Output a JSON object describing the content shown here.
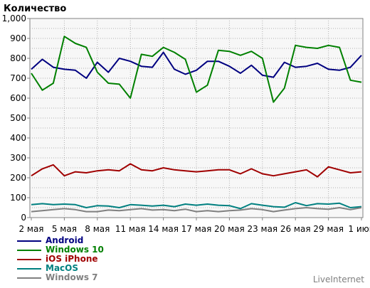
{
  "chart_data": {
    "type": "line",
    "title": "Количество",
    "xlabel": "",
    "ylabel": "",
    "ylim": [
      0,
      1000
    ],
    "yticks": [
      0,
      50,
      100,
      150,
      200,
      250,
      300,
      350,
      400,
      450,
      500,
      550,
      600,
      650,
      700,
      750,
      800,
      850,
      900,
      950,
      1000
    ],
    "ytick_labels": [
      "0",
      "",
      "100",
      "",
      "200",
      "",
      "300",
      "",
      "400",
      "",
      "500",
      "",
      "600",
      "",
      "700",
      "",
      "800",
      "",
      "900",
      "",
      "1,000"
    ],
    "grid": true,
    "legend_position": "bottom-left",
    "x": [
      "2 мая",
      "3 мая",
      "4 мая",
      "5 мая",
      "6 мая",
      "7 мая",
      "8 мая",
      "9 мая",
      "10 мая",
      "11 мая",
      "12 мая",
      "13 мая",
      "14 мая",
      "15 мая",
      "16 мая",
      "17 мая",
      "18 мая",
      "19 мая",
      "20 мая",
      "21 мая",
      "22 мая",
      "23 мая",
      "24 мая",
      "25 мая",
      "26 мая",
      "27 мая",
      "28 мая",
      "29 мая",
      "30 мая",
      "31 мая",
      "1 июн"
    ],
    "xtick_labels": [
      "2 мая",
      "",
      "",
      "5 мая",
      "",
      "",
      "8 мая",
      "",
      "",
      "11 мая",
      "",
      "",
      "14 мая",
      "",
      "",
      "17 мая",
      "",
      "",
      "20 мая",
      "",
      "",
      "23 мая",
      "",
      "",
      "26 мая",
      "",
      "",
      "29 мая",
      "",
      "",
      "1 июн"
    ],
    "series": [
      {
        "name": "Android",
        "color": "#000080",
        "values": [
          745,
          795,
          755,
          745,
          740,
          700,
          780,
          730,
          800,
          785,
          760,
          755,
          830,
          745,
          720,
          740,
          785,
          785,
          760,
          725,
          765,
          715,
          705,
          780,
          755,
          760,
          775,
          745,
          740,
          755,
          815
        ]
      },
      {
        "name": "Windows 10",
        "color": "#008000",
        "values": [
          725,
          640,
          675,
          910,
          875,
          855,
          730,
          675,
          670,
          600,
          820,
          810,
          855,
          830,
          795,
          630,
          665,
          840,
          835,
          815,
          835,
          800,
          580,
          650,
          865,
          855,
          850,
          865,
          855,
          690,
          680
        ]
      },
      {
        "name": "iOS iPhone",
        "color": "#a00000",
        "values": [
          210,
          245,
          265,
          210,
          230,
          225,
          235,
          240,
          235,
          270,
          240,
          235,
          250,
          240,
          235,
          230,
          235,
          240,
          240,
          220,
          245,
          220,
          210,
          220,
          230,
          240,
          205,
          255,
          240,
          225,
          230
        ]
      },
      {
        "name": "MacOS",
        "color": "#008080",
        "values": [
          65,
          70,
          65,
          68,
          65,
          50,
          60,
          58,
          50,
          65,
          62,
          58,
          62,
          55,
          68,
          62,
          68,
          62,
          60,
          45,
          70,
          62,
          55,
          52,
          75,
          60,
          70,
          68,
          72,
          50,
          55
        ]
      },
      {
        "name": "Windows 7",
        "color": "#808080",
        "values": [
          30,
          35,
          40,
          45,
          40,
          30,
          30,
          38,
          35,
          40,
          45,
          38,
          40,
          35,
          42,
          30,
          35,
          30,
          35,
          38,
          45,
          40,
          30,
          38,
          45,
          50,
          45,
          42,
          50,
          40,
          50
        ]
      }
    ]
  },
  "footer": {
    "credit": "LiveInternet"
  }
}
